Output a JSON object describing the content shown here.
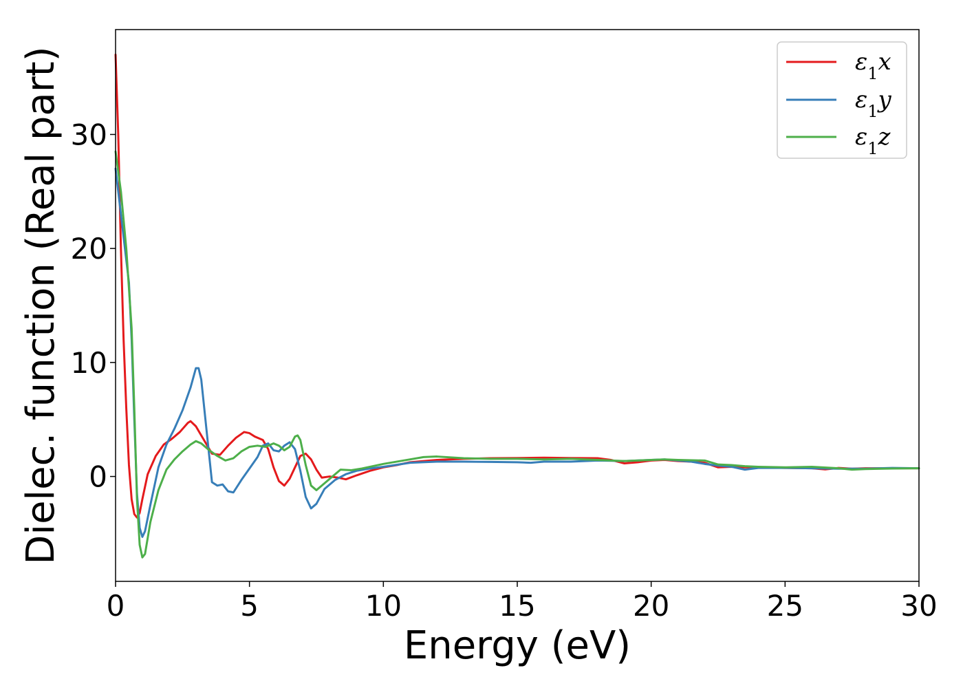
{
  "chart_data": {
    "type": "line",
    "xlabel": "Energy (eV)",
    "ylabel": "Dielec. function (Real part)",
    "xlim": [
      0,
      30
    ],
    "ylim": [
      -9.2,
      39.2
    ],
    "xticks": [
      0,
      5,
      10,
      15,
      20,
      25,
      30
    ],
    "yticks": [
      0,
      10,
      20,
      30
    ],
    "xtick_labels": [
      "0",
      "5",
      "10",
      "15",
      "20",
      "25",
      "30"
    ],
    "ytick_labels": [
      "0",
      "10",
      "20",
      "30"
    ],
    "grid": false,
    "legend_position": "top-right",
    "series": [
      {
        "name": "ε₁x",
        "label_base": "ε",
        "label_sub": "1",
        "label_var": "x",
        "color": "#e41a1c",
        "points": [
          [
            0.0,
            37.0
          ],
          [
            0.1,
            30.0
          ],
          [
            0.2,
            20.0
          ],
          [
            0.3,
            12.0
          ],
          [
            0.4,
            6.0
          ],
          [
            0.5,
            1.0
          ],
          [
            0.6,
            -2.0
          ],
          [
            0.7,
            -3.3
          ],
          [
            0.8,
            -3.6
          ],
          [
            0.9,
            -3.2
          ],
          [
            1.0,
            -2.0
          ],
          [
            1.2,
            0.2
          ],
          [
            1.5,
            1.8
          ],
          [
            1.8,
            2.8
          ],
          [
            2.1,
            3.3
          ],
          [
            2.4,
            3.9
          ],
          [
            2.7,
            4.7
          ],
          [
            2.8,
            4.85
          ],
          [
            3.0,
            4.4
          ],
          [
            3.3,
            3.2
          ],
          [
            3.6,
            2.0
          ],
          [
            3.9,
            1.9
          ],
          [
            4.2,
            2.7
          ],
          [
            4.5,
            3.4
          ],
          [
            4.8,
            3.9
          ],
          [
            5.0,
            3.8
          ],
          [
            5.2,
            3.5
          ],
          [
            5.5,
            3.2
          ],
          [
            5.7,
            2.4
          ],
          [
            5.9,
            0.8
          ],
          [
            6.1,
            -0.4
          ],
          [
            6.3,
            -0.8
          ],
          [
            6.5,
            -0.2
          ],
          [
            6.7,
            0.8
          ],
          [
            6.9,
            1.8
          ],
          [
            7.1,
            2.0
          ],
          [
            7.3,
            1.5
          ],
          [
            7.5,
            0.6
          ],
          [
            7.7,
            -0.1
          ],
          [
            8.0,
            0.0
          ],
          [
            8.3,
            -0.1
          ],
          [
            8.6,
            -0.25
          ],
          [
            9.0,
            0.1
          ],
          [
            9.5,
            0.5
          ],
          [
            10.0,
            0.8
          ],
          [
            10.5,
            1.0
          ],
          [
            11.0,
            1.25
          ],
          [
            12.0,
            1.45
          ],
          [
            13.0,
            1.55
          ],
          [
            14.0,
            1.6
          ],
          [
            15.0,
            1.62
          ],
          [
            16.0,
            1.65
          ],
          [
            17.0,
            1.62
          ],
          [
            18.0,
            1.6
          ],
          [
            18.5,
            1.45
          ],
          [
            19.0,
            1.15
          ],
          [
            19.5,
            1.25
          ],
          [
            20.0,
            1.4
          ],
          [
            20.5,
            1.45
          ],
          [
            21.0,
            1.35
          ],
          [
            21.5,
            1.3
          ],
          [
            22.0,
            1.2
          ],
          [
            22.5,
            0.8
          ],
          [
            23.0,
            0.85
          ],
          [
            23.5,
            0.8
          ],
          [
            24.0,
            0.8
          ],
          [
            25.0,
            0.75
          ],
          [
            26.0,
            0.72
          ],
          [
            26.5,
            0.62
          ],
          [
            27.0,
            0.75
          ],
          [
            27.5,
            0.68
          ],
          [
            28.0,
            0.72
          ],
          [
            29.0,
            0.72
          ],
          [
            30.0,
            0.72
          ]
        ]
      },
      {
        "name": "ε₁y",
        "label_base": "ε",
        "label_sub": "1",
        "label_var": "y",
        "color": "#377eb8",
        "points": [
          [
            0.0,
            27.0
          ],
          [
            0.2,
            23.0
          ],
          [
            0.4,
            19.0
          ],
          [
            0.5,
            17.0
          ],
          [
            0.6,
            12.0
          ],
          [
            0.7,
            5.0
          ],
          [
            0.8,
            -1.5
          ],
          [
            0.9,
            -4.5
          ],
          [
            1.0,
            -5.3
          ],
          [
            1.1,
            -4.8
          ],
          [
            1.3,
            -2.5
          ],
          [
            1.6,
            0.8
          ],
          [
            1.9,
            2.8
          ],
          [
            2.2,
            4.2
          ],
          [
            2.5,
            5.8
          ],
          [
            2.8,
            7.8
          ],
          [
            3.0,
            9.5
          ],
          [
            3.1,
            9.5
          ],
          [
            3.2,
            8.5
          ],
          [
            3.4,
            4.0
          ],
          [
            3.6,
            -0.5
          ],
          [
            3.8,
            -0.8
          ],
          [
            4.0,
            -0.7
          ],
          [
            4.2,
            -1.3
          ],
          [
            4.4,
            -1.4
          ],
          [
            4.7,
            -0.3
          ],
          [
            5.0,
            0.7
          ],
          [
            5.3,
            1.7
          ],
          [
            5.5,
            2.7
          ],
          [
            5.7,
            2.9
          ],
          [
            5.9,
            2.3
          ],
          [
            6.1,
            2.2
          ],
          [
            6.3,
            2.7
          ],
          [
            6.5,
            3.0
          ],
          [
            6.7,
            2.4
          ],
          [
            6.9,
            0.5
          ],
          [
            7.1,
            -1.8
          ],
          [
            7.3,
            -2.8
          ],
          [
            7.5,
            -2.4
          ],
          [
            7.8,
            -1.1
          ],
          [
            8.2,
            -0.3
          ],
          [
            8.6,
            0.2
          ],
          [
            9.0,
            0.5
          ],
          [
            9.5,
            0.7
          ],
          [
            10.0,
            0.85
          ],
          [
            11.0,
            1.2
          ],
          [
            12.0,
            1.3
          ],
          [
            13.0,
            1.3
          ],
          [
            14.0,
            1.28
          ],
          [
            15.0,
            1.25
          ],
          [
            15.5,
            1.2
          ],
          [
            16.0,
            1.3
          ],
          [
            17.0,
            1.3
          ],
          [
            18.0,
            1.4
          ],
          [
            19.0,
            1.35
          ],
          [
            20.0,
            1.45
          ],
          [
            20.5,
            1.5
          ],
          [
            21.0,
            1.4
          ],
          [
            21.5,
            1.3
          ],
          [
            22.0,
            1.1
          ],
          [
            22.5,
            0.95
          ],
          [
            23.0,
            0.85
          ],
          [
            23.5,
            0.6
          ],
          [
            24.0,
            0.75
          ],
          [
            25.0,
            0.75
          ],
          [
            26.0,
            0.72
          ],
          [
            27.0,
            0.68
          ],
          [
            28.0,
            0.68
          ],
          [
            29.0,
            0.75
          ],
          [
            30.0,
            0.72
          ]
        ]
      },
      {
        "name": "ε₁z",
        "label_base": "ε",
        "label_sub": "1",
        "label_var": "z",
        "color": "#4daf4a",
        "points": [
          [
            0.0,
            28.5
          ],
          [
            0.2,
            25.0
          ],
          [
            0.4,
            20.0
          ],
          [
            0.6,
            13.0
          ],
          [
            0.7,
            6.0
          ],
          [
            0.8,
            -2.0
          ],
          [
            0.9,
            -6.0
          ],
          [
            1.0,
            -7.1
          ],
          [
            1.1,
            -6.8
          ],
          [
            1.3,
            -4.0
          ],
          [
            1.6,
            -1.2
          ],
          [
            1.9,
            0.6
          ],
          [
            2.2,
            1.5
          ],
          [
            2.5,
            2.2
          ],
          [
            2.8,
            2.8
          ],
          [
            3.0,
            3.1
          ],
          [
            3.2,
            2.9
          ],
          [
            3.5,
            2.3
          ],
          [
            3.8,
            1.8
          ],
          [
            4.1,
            1.4
          ],
          [
            4.4,
            1.6
          ],
          [
            4.7,
            2.2
          ],
          [
            5.0,
            2.6
          ],
          [
            5.3,
            2.7
          ],
          [
            5.6,
            2.6
          ],
          [
            5.9,
            2.9
          ],
          [
            6.1,
            2.7
          ],
          [
            6.3,
            2.3
          ],
          [
            6.5,
            2.6
          ],
          [
            6.7,
            3.5
          ],
          [
            6.8,
            3.6
          ],
          [
            6.9,
            3.2
          ],
          [
            7.1,
            1.0
          ],
          [
            7.3,
            -0.8
          ],
          [
            7.5,
            -1.2
          ],
          [
            7.8,
            -0.6
          ],
          [
            8.1,
            0.0
          ],
          [
            8.4,
            0.6
          ],
          [
            8.8,
            0.55
          ],
          [
            9.2,
            0.7
          ],
          [
            10.0,
            1.1
          ],
          [
            11.0,
            1.5
          ],
          [
            11.5,
            1.7
          ],
          [
            12.0,
            1.75
          ],
          [
            13.0,
            1.6
          ],
          [
            14.0,
            1.55
          ],
          [
            15.0,
            1.55
          ],
          [
            16.0,
            1.5
          ],
          [
            17.0,
            1.55
          ],
          [
            18.0,
            1.45
          ],
          [
            19.0,
            1.35
          ],
          [
            20.0,
            1.45
          ],
          [
            20.5,
            1.5
          ],
          [
            21.0,
            1.45
          ],
          [
            22.0,
            1.4
          ],
          [
            22.5,
            1.05
          ],
          [
            23.0,
            1.0
          ],
          [
            23.5,
            0.9
          ],
          [
            24.0,
            0.85
          ],
          [
            25.0,
            0.8
          ],
          [
            26.0,
            0.85
          ],
          [
            27.0,
            0.72
          ],
          [
            27.5,
            0.6
          ],
          [
            28.0,
            0.65
          ],
          [
            29.0,
            0.7
          ],
          [
            30.0,
            0.72
          ]
        ]
      }
    ]
  }
}
